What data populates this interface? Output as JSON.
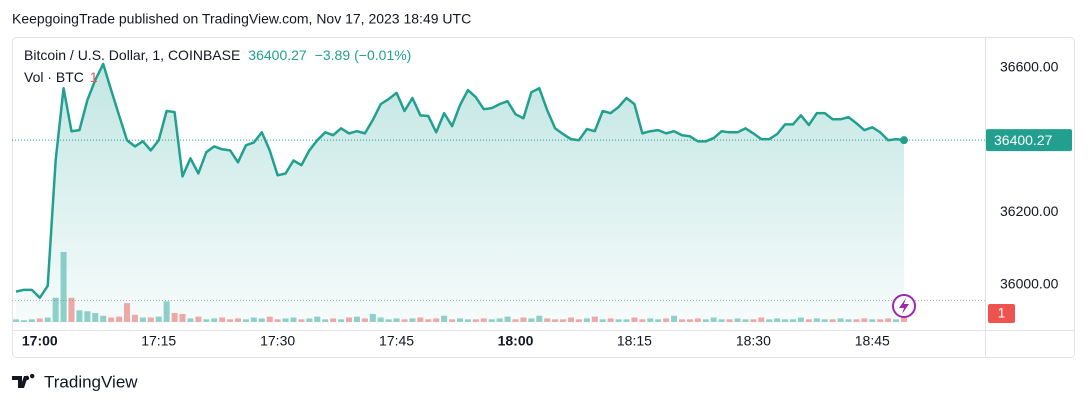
{
  "attribution": "KeepgoingTrade published on TradingView.com, Nov 17, 2023 18:49 UTC",
  "brand": "TradingView",
  "chart_data": {
    "type": "area",
    "symbol": "Bitcoin / U.S. Dollar, 1, COINBASE",
    "change": "−3.89",
    "change_percent": "(−0.01%)",
    "volume_title": "Vol · BTC",
    "x": [
      "16:57",
      "16:58",
      "16:59",
      "17:00",
      "17:01",
      "17:02",
      "17:03",
      "17:04",
      "17:05",
      "17:06",
      "17:07",
      "17:08",
      "17:09",
      "17:10",
      "17:11",
      "17:12",
      "17:13",
      "17:14",
      "17:15",
      "17:16",
      "17:17",
      "17:18",
      "17:19",
      "17:20",
      "17:21",
      "17:22",
      "17:23",
      "17:24",
      "17:25",
      "17:26",
      "17:27",
      "17:28",
      "17:29",
      "17:30",
      "17:31",
      "17:32",
      "17:33",
      "17:34",
      "17:35",
      "17:36",
      "17:37",
      "17:38",
      "17:39",
      "17:40",
      "17:41",
      "17:42",
      "17:43",
      "17:44",
      "17:45",
      "17:46",
      "17:47",
      "17:48",
      "17:49",
      "17:50",
      "17:51",
      "17:52",
      "17:53",
      "17:54",
      "17:55",
      "17:56",
      "17:57",
      "17:58",
      "17:59",
      "18:00",
      "18:01",
      "18:02",
      "18:03",
      "18:04",
      "18:05",
      "18:06",
      "18:07",
      "18:08",
      "18:09",
      "18:10",
      "18:11",
      "18:12",
      "18:13",
      "18:14",
      "18:15",
      "18:16",
      "18:17",
      "18:18",
      "18:19",
      "18:20",
      "18:21",
      "18:22",
      "18:23",
      "18:24",
      "18:25",
      "18:26",
      "18:27",
      "18:28",
      "18:29",
      "18:30",
      "18:31",
      "18:32",
      "18:33",
      "18:34",
      "18:35",
      "18:36",
      "18:37",
      "18:38",
      "18:39",
      "18:40",
      "18:41",
      "18:42",
      "18:43",
      "18:44",
      "18:45",
      "18:46",
      "18:47",
      "18:48",
      "18:49"
    ],
    "series": [
      {
        "name": "Price",
        "color": "#22a08f",
        "values": [
          35981,
          35986,
          35986,
          35964,
          35997,
          36344,
          36544,
          36425,
          36428,
          36511,
          36567,
          36611,
          36539,
          36469,
          36400,
          36383,
          36397,
          36372,
          36400,
          36481,
          36478,
          36300,
          36350,
          36308,
          36367,
          36383,
          36375,
          36372,
          36339,
          36386,
          36394,
          36422,
          36372,
          36303,
          36308,
          36344,
          36331,
          36372,
          36400,
          36422,
          36414,
          36433,
          36419,
          36425,
          36419,
          36456,
          36500,
          36514,
          36531,
          36481,
          36517,
          36469,
          36467,
          36422,
          36475,
          36439,
          36497,
          36539,
          36519,
          36486,
          36489,
          36500,
          36508,
          36472,
          36461,
          36533,
          36544,
          36483,
          36433,
          36417,
          36403,
          36400,
          36431,
          36425,
          36481,
          36475,
          36492,
          36517,
          36500,
          36419,
          36425,
          36428,
          36419,
          36425,
          36414,
          36411,
          36397,
          36397,
          36406,
          36425,
          36422,
          36422,
          36433,
          36419,
          36403,
          36403,
          36417,
          36444,
          36444,
          36469,
          36442,
          36475,
          36475,
          36458,
          36458,
          36464,
          36447,
          36428,
          36436,
          36422,
          36400,
          36403,
          36400.27
        ]
      },
      {
        "name": "Volume",
        "up_color": "#26a69a",
        "down_color": "#ef5350",
        "values": [
          0.3,
          0.2,
          0.3,
          0.4,
          0.5,
          2.7,
          7.8,
          2.7,
          1.3,
          1.2,
          1.0,
          0.7,
          0.5,
          0.6,
          2.1,
          0.8,
          0.5,
          0.5,
          0.6,
          2.3,
          1.0,
          0.9,
          0.4,
          0.6,
          0.3,
          0.4,
          0.5,
          0.3,
          0.4,
          0.3,
          0.5,
          0.4,
          0.6,
          0.3,
          0.4,
          0.5,
          0.3,
          0.4,
          0.6,
          0.3,
          0.4,
          0.3,
          0.5,
          0.6,
          0.4,
          0.9,
          0.5,
          0.3,
          0.4,
          0.3,
          0.4,
          0.5,
          0.3,
          0.4,
          0.7,
          0.3,
          0.4,
          0.3,
          0.3,
          0.4,
          0.3,
          0.4,
          0.6,
          0.3,
          0.5,
          0.4,
          0.7,
          0.4,
          0.3,
          0.3,
          0.5,
          0.3,
          0.4,
          0.6,
          0.3,
          0.4,
          0.3,
          0.3,
          0.5,
          0.3,
          0.4,
          0.3,
          0.4,
          0.7,
          0.3,
          0.3,
          0.4,
          0.3,
          0.5,
          0.3,
          0.3,
          0.4,
          0.3,
          0.3,
          0.5,
          0.3,
          0.4,
          0.3,
          0.3,
          0.5,
          0.3,
          0.4,
          0.3,
          0.3,
          0.4,
          0.3,
          0.3,
          0.4,
          0.3,
          0.3,
          0.4,
          0.3,
          1
        ]
      }
    ],
    "ylim": [
      35897,
      36683
    ],
    "yticks": [
      {
        "value": 36000,
        "label": "36000.00"
      },
      {
        "value": 36200,
        "label": "36200.00"
      },
      {
        "value": 36600,
        "label": "36600.00"
      }
    ],
    "xticks": [
      "17:00",
      "17:15",
      "17:30",
      "17:45",
      "18:00",
      "18:15",
      "18:30",
      "18:45"
    ],
    "grid": false
  }
}
